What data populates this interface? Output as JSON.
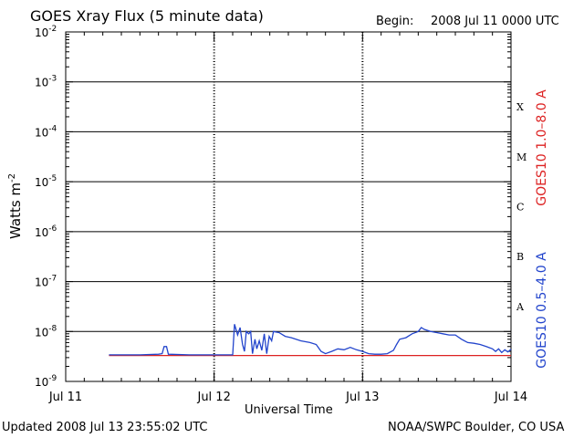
{
  "title": "GOES Xray Flux (5 minute data)",
  "begin_label": "Begin:",
  "begin_value": "2008 Jul 11 0000 UTC",
  "updated": "Updated 2008 Jul 13 23:55:02 UTC",
  "credit": "NOAA/SWPC Boulder, CO USA",
  "colors": {
    "long": "#dd2222",
    "short": "#2244cc",
    "axis": "#000000"
  },
  "chart_data": {
    "type": "line",
    "title": "GOES Xray Flux (5 minute data)",
    "xlabel": "Universal Time",
    "ylabel_base": "Watts m",
    "ylabel_exp": "-2",
    "yscale": "log",
    "ylim": [
      1e-09,
      0.01
    ],
    "xlim": [
      0,
      72
    ],
    "x_unit": "hours since Begin",
    "x_ticks": [
      {
        "x": 0,
        "label": "Jul 11"
      },
      {
        "x": 24,
        "label": "Jul 12"
      },
      {
        "x": 48,
        "label": "Jul 13"
      },
      {
        "x": 72,
        "label": "Jul 14"
      }
    ],
    "y_ticks": [
      {
        "base": "10",
        "exp": "-9"
      },
      {
        "base": "10",
        "exp": "-8"
      },
      {
        "base": "10",
        "exp": "-7"
      },
      {
        "base": "10",
        "exp": "-6"
      },
      {
        "base": "10",
        "exp": "-5"
      },
      {
        "base": "10",
        "exp": "-4"
      },
      {
        "base": "10",
        "exp": "-3"
      },
      {
        "base": "10",
        "exp": "-2"
      }
    ],
    "flare_classes": [
      {
        "label": "A",
        "value": 3.16e-08
      },
      {
        "label": "B",
        "value": 3.16e-07
      },
      {
        "label": "C",
        "value": 3.16e-06
      },
      {
        "label": "M",
        "value": 3.16e-05
      },
      {
        "label": "X",
        "value": 0.000316
      }
    ],
    "grid": true,
    "legend": "right-vertical",
    "series": [
      {
        "name": "GOES10 1.0–8.0 A",
        "color": "#dd2222",
        "points": [
          [
            7,
            3.3e-09
          ],
          [
            72,
            3.3e-09
          ]
        ]
      },
      {
        "name": "GOES10 0.5–4.0 A",
        "color": "#2244cc",
        "points": [
          [
            7,
            3.4e-09
          ],
          [
            12,
            3.4e-09
          ],
          [
            15,
            3.5e-09
          ],
          [
            15.6,
            3.6e-09
          ],
          [
            15.9,
            5e-09
          ],
          [
            16.3,
            5e-09
          ],
          [
            16.6,
            3.5e-09
          ],
          [
            20,
            3.4e-09
          ],
          [
            24,
            3.4e-09
          ],
          [
            27,
            3.4e-09
          ],
          [
            27.3,
            1.4e-08
          ],
          [
            27.8,
            8.5e-09
          ],
          [
            28.2,
            1.2e-08
          ],
          [
            28.6,
            5.5e-09
          ],
          [
            28.9,
            4e-09
          ],
          [
            29.2,
            1e-08
          ],
          [
            29.6,
            9e-09
          ],
          [
            29.9,
            1e-08
          ],
          [
            30.2,
            3.6e-09
          ],
          [
            30.6,
            7e-09
          ],
          [
            30.9,
            4.5e-09
          ],
          [
            31.3,
            6.5e-09
          ],
          [
            31.7,
            4.2e-09
          ],
          [
            32.1,
            9e-09
          ],
          [
            32.5,
            3.6e-09
          ],
          [
            32.9,
            8e-09
          ],
          [
            33.3,
            6.5e-09
          ],
          [
            33.6,
            1e-08
          ],
          [
            34.5,
            9.5e-09
          ],
          [
            35.5,
            8e-09
          ],
          [
            36.5,
            7.5e-09
          ],
          [
            38,
            6.5e-09
          ],
          [
            39.5,
            6e-09
          ],
          [
            40.5,
            5.5e-09
          ],
          [
            41.3,
            4e-09
          ],
          [
            42,
            3.6e-09
          ],
          [
            43,
            4e-09
          ],
          [
            44,
            4.5e-09
          ],
          [
            45,
            4.3e-09
          ],
          [
            46,
            4.8e-09
          ],
          [
            47,
            4.3e-09
          ],
          [
            48,
            4e-09
          ],
          [
            49,
            3.6e-09
          ],
          [
            50,
            3.5e-09
          ],
          [
            51,
            3.5e-09
          ],
          [
            52,
            3.6e-09
          ],
          [
            53,
            4.2e-09
          ],
          [
            53.5,
            5.5e-09
          ],
          [
            54,
            7e-09
          ],
          [
            55,
            7.5e-09
          ],
          [
            56,
            9e-09
          ],
          [
            57,
            1e-08
          ],
          [
            57.5,
            1.2e-08
          ],
          [
            58,
            1.1e-08
          ],
          [
            59,
            1e-08
          ],
          [
            60,
            9.5e-09
          ],
          [
            61,
            9e-09
          ],
          [
            62,
            8.5e-09
          ],
          [
            63,
            8.5e-09
          ],
          [
            64,
            7e-09
          ],
          [
            65,
            6e-09
          ],
          [
            66,
            5.8e-09
          ],
          [
            67,
            5.5e-09
          ],
          [
            68,
            5e-09
          ],
          [
            69,
            4.5e-09
          ],
          [
            69.5,
            4e-09
          ],
          [
            70,
            4.5e-09
          ],
          [
            70.5,
            3.8e-09
          ],
          [
            71,
            4.3e-09
          ],
          [
            71.5,
            3.9e-09
          ],
          [
            72,
            4.4e-09
          ]
        ]
      }
    ]
  }
}
